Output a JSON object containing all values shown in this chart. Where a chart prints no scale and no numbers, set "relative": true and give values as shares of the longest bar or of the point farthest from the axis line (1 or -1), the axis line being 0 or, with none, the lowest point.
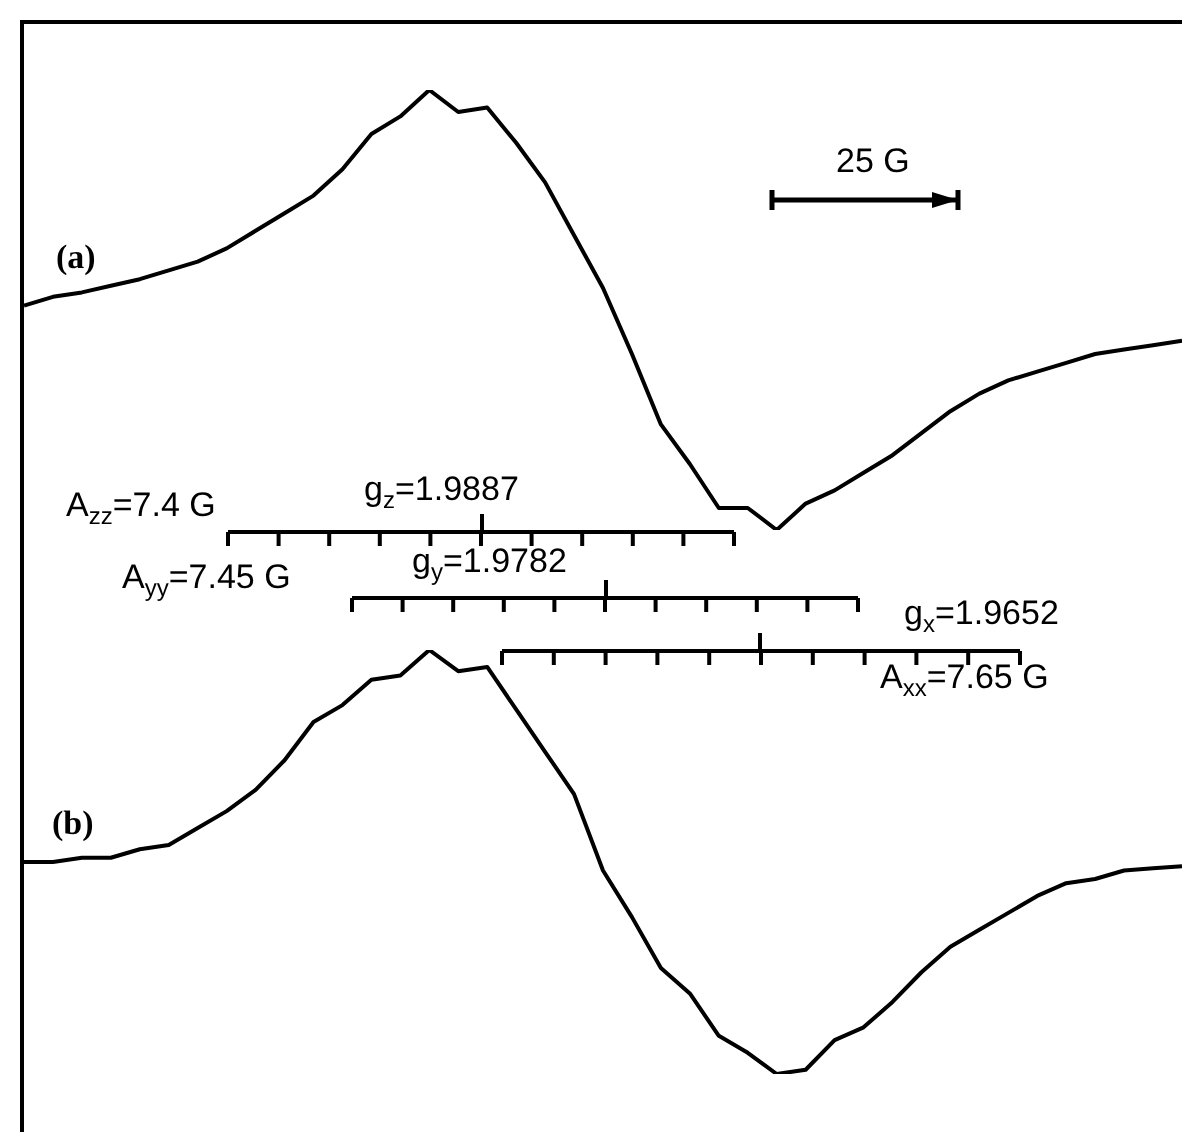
{
  "chart_data": [
    {
      "type": "line",
      "title": "(a)",
      "relative": true,
      "color": "#000000",
      "categories": [
        null,
        null,
        null,
        null,
        null,
        null,
        null,
        null,
        null,
        null,
        null,
        null,
        null,
        null,
        null,
        null,
        null,
        null,
        null,
        null,
        null,
        null,
        null,
        null,
        null,
        null,
        null,
        null,
        null,
        null,
        null,
        null,
        null,
        null,
        null,
        null,
        null,
        null,
        null,
        null,
        null
      ],
      "values": [
        0.51,
        0.53,
        0.54,
        0.555,
        0.57,
        0.59,
        0.61,
        0.64,
        0.68,
        0.72,
        0.76,
        0.82,
        0.9,
        0.94,
        1,
        0.95,
        0.96,
        0.88,
        0.79,
        0.67,
        0.55,
        0.4,
        0.24,
        0.15,
        0.05,
        0.05,
        0,
        0.06,
        0.09,
        0.13,
        0.17,
        0.22,
        0.27,
        0.31,
        0.34,
        0.36,
        0.38,
        0.4,
        0.41,
        0.42,
        0.43
      ],
      "annotations": [
        "25 G"
      ]
    },
    {
      "type": "line",
      "title": "(b)",
      "relative": true,
      "color": "#000000",
      "categories": [
        null,
        null,
        null,
        null,
        null,
        null,
        null,
        null,
        null,
        null,
        null,
        null,
        null,
        null,
        null,
        null,
        null,
        null,
        null,
        null,
        null,
        null,
        null,
        null,
        null,
        null,
        null,
        null,
        null,
        null,
        null,
        null,
        null,
        null,
        null,
        null,
        null,
        null,
        null,
        null,
        null
      ],
      "values": [
        0.5,
        0.5,
        0.51,
        0.51,
        0.53,
        0.54,
        0.58,
        0.62,
        0.67,
        0.74,
        0.83,
        0.87,
        0.93,
        0.94,
        1,
        0.95,
        0.96,
        0.86,
        0.76,
        0.66,
        0.48,
        0.37,
        0.25,
        0.19,
        0.09,
        0.05,
        0,
        0.01,
        0.08,
        0.11,
        0.17,
        0.24,
        0.3,
        0.34,
        0.38,
        0.42,
        0.45,
        0.46,
        0.48,
        0.485,
        0.49
      ],
      "annotations": [
        "A$_{zz}$=7.4 G",
        "g$_{z}$=1.9887",
        "A$_{yy}$=7.45 G",
        "g$_{y}$=1.9782",
        "g$_{x}$=1.9652",
        "A$_{xx}$=7.65 G"
      ]
    }
  ]
}
